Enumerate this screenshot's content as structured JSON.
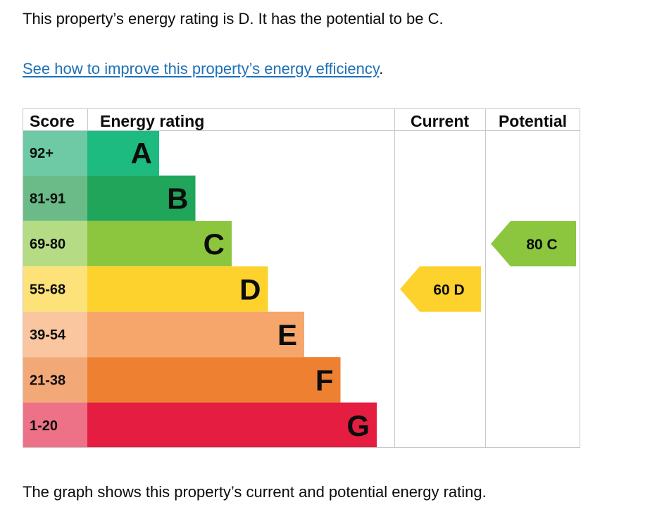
{
  "intro_text": "This property’s energy rating is D. It has the potential to be C.",
  "link": {
    "text": "See how to improve this property’s energy efficiency",
    "suffix": "."
  },
  "footer_text": "The graph shows this property’s current and potential energy rating.",
  "chart_data": {
    "type": "bar",
    "headers": {
      "score": "Score",
      "rating": "Energy rating",
      "current": "Current",
      "potential": "Potential"
    },
    "bands": [
      {
        "band": "A",
        "range": "92+",
        "min": 92,
        "max": 100,
        "color": "#1dbb80",
        "score_bg": "#6ec9a5"
      },
      {
        "band": "B",
        "range": "81-91",
        "min": 81,
        "max": 91,
        "color": "#20a55a",
        "score_bg": "#6abb87"
      },
      {
        "band": "C",
        "range": "69-80",
        "min": 69,
        "max": 80,
        "color": "#8cc63f",
        "score_bg": "#b5dc85"
      },
      {
        "band": "D",
        "range": "55-68",
        "min": 55,
        "max": 68,
        "color": "#fdd22c",
        "score_bg": "#fde27a"
      },
      {
        "band": "E",
        "range": "39-54",
        "min": 39,
        "max": 54,
        "color": "#f6a66a",
        "score_bg": "#f9c69f"
      },
      {
        "band": "F",
        "range": "21-38",
        "min": 21,
        "max": 38,
        "color": "#ee8131",
        "score_bg": "#f3a977"
      },
      {
        "band": "G",
        "range": "1-20",
        "min": 1,
        "max": 20,
        "color": "#e41d41",
        "score_bg": "#ee7287"
      }
    ],
    "current": {
      "score": 60,
      "band": "D",
      "label": "60  D"
    },
    "potential": {
      "score": 80,
      "band": "C",
      "label": "80  C"
    }
  }
}
